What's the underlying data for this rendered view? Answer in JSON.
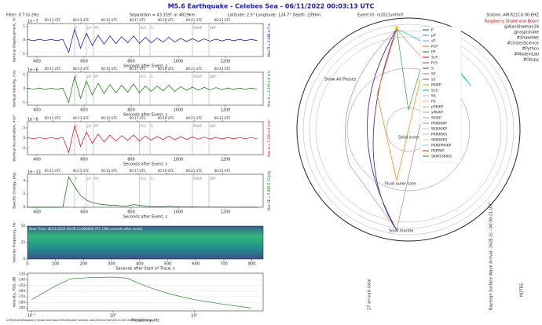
{
  "header": {
    "title": "M5.6 Earthquake - Celebes Sea -  06/11/2022 00:03:13 UTC",
    "filter": "Filter: 0.7 to 2Hz",
    "separation": "Separation = 43.339° or 4819km.",
    "location": "Latitude: 2.5° Longitude: 124.7° Depth: 239km.",
    "event": "Event ID: rs2022vvfmtf",
    "station": "Station: AM.R21C0.00.EHZ",
    "brand": "Raspberry Shake and Boom",
    "tags": [
      "@AlanSheehan18",
      "@raspishake",
      "#ShakeNet",
      "#CitizenScience",
      "#Python",
      "#MadeInLab",
      "#Obspy"
    ],
    "footer": "D:\\Pictures\\Raspberry Shake and Boom\\M5.6Quake Celebes Sea\\2022vvfmtf\\20221106 000313 UTC.EZ.png",
    "notes": "NOTES:",
    "rayleigh": "Rayleigh Surface Wave Arrival: 1628.1s - 00:30:21 UTC",
    "arrivals": "27 arrivals total"
  },
  "diagram": {
    "inner": "Solid inner core",
    "outer": "Fluid outer core",
    "mantle": "Solid mantle",
    "show": "Show All Phases",
    "phases": [
      {
        "name": "P",
        "color": "#1f77b4"
      },
      {
        "name": "pP",
        "color": "#5b9bd5"
      },
      {
        "name": "sP",
        "color": "#7fb8e0"
      },
      {
        "name": "PcP",
        "color": "#ff7f0e"
      },
      {
        "name": "PP",
        "color": "#2ca02c"
      },
      {
        "name": "ScP",
        "color": "#d62728"
      },
      {
        "name": "PcS",
        "color": "#9467bd"
      },
      {
        "name": "S",
        "color": "#8c564b"
      },
      {
        "name": "SP",
        "color": "#e377c2"
      },
      {
        "name": "sS",
        "color": "#7f7f7f"
      },
      {
        "name": "PKiKP",
        "color": "#bcbd22"
      },
      {
        "name": "ScS",
        "color": "#17becf"
      },
      {
        "name": "SS",
        "color": "#aec7e8"
      },
      {
        "name": "PS",
        "color": "#ffbb78"
      },
      {
        "name": "pPKiKP",
        "color": "#98df8a"
      },
      {
        "name": "sPKiKP",
        "color": "#ff9896"
      },
      {
        "name": "SKiKP",
        "color": "#c5b0d5"
      },
      {
        "name": "PKIKKIKP",
        "color": "#c49c94"
      },
      {
        "name": "SKIKKIKP",
        "color": "#f7b6d2"
      },
      {
        "name": "PKIKKIKS",
        "color": "#c7c7c7"
      },
      {
        "name": "SKIKKIKS",
        "color": "#dbdb8d"
      },
      {
        "name": "PKIKPPKIKP",
        "color": "#9edae5"
      },
      {
        "name": "PKPPKP",
        "color": "#e6550d"
      },
      {
        "name": "SKIKSSKIKS",
        "color": "#31a354"
      }
    ]
  },
  "chart_data": [
    {
      "type": "line",
      "ylabel": "Vertical Displacement, m",
      "xlabel": "Seconds after Event, s",
      "exponent": "1e−7",
      "annotation": "Max D = 2.488 e-7 m",
      "color": "#0000cc",
      "xlim": [
        360,
        1360
      ],
      "xticks": [
        400,
        600,
        800,
        1000,
        1200
      ],
      "ylim": [
        -1.2,
        1.2
      ],
      "yticks": [
        -1,
        0,
        1
      ],
      "x2ticks": [
        {
          "value": 467,
          "label": "00:11 UTC"
        },
        {
          "value": 587,
          "label": "00:13 UTC"
        },
        {
          "value": 707,
          "label": "00:15 UTC"
        },
        {
          "value": 827,
          "label": "00:17 UTC"
        },
        {
          "value": 947,
          "label": "00:19 UTC"
        },
        {
          "value": 1067,
          "label": "00:21 UTC"
        },
        {
          "value": 1187,
          "label": "00:23 UTC"
        }
      ],
      "phases": [
        {
          "value": 560,
          "label": "P"
        },
        {
          "value": 610,
          "label": "pP"
        },
        {
          "value": 640,
          "label": "PP"
        },
        {
          "value": 835,
          "label": "PcS"
        },
        {
          "value": 880,
          "label": "S"
        },
        {
          "value": 1060,
          "label": "PKiKP"
        },
        {
          "value": 1130,
          "label": "SKP"
        }
      ],
      "x": [
        360,
        385,
        410,
        435,
        460,
        485,
        510,
        535,
        560,
        585,
        610,
        635,
        660,
        685,
        710,
        735,
        760,
        785,
        810,
        835,
        860,
        885,
        910,
        935,
        960,
        985,
        1010,
        1035,
        1060,
        1085,
        1110,
        1135,
        1160,
        1185,
        1210,
        1235,
        1260,
        1285,
        1310,
        1335
      ],
      "values": [
        0.04,
        -0.05,
        0.05,
        -0.04,
        0.05,
        -0.05,
        0.06,
        -0.9,
        0.8,
        -0.6,
        0.5,
        -0.4,
        0.35,
        -0.3,
        0.3,
        -0.25,
        0.25,
        -0.2,
        0.3,
        -0.25,
        0.2,
        -0.2,
        0.15,
        -0.15,
        0.2,
        -0.15,
        0.12,
        -0.1,
        0.1,
        -0.1,
        0.08,
        -0.08,
        0.07,
        -0.07,
        0.06,
        -0.06,
        0.05,
        -0.05,
        0.05,
        -0.05
      ]
    },
    {
      "type": "line",
      "ylabel": "Vertical Velocity, m/s",
      "xlabel": "Seconds after Event, s",
      "exponent": "1e−6",
      "annotation": "Max V = 1.055 e-6 m/s",
      "color": "#007700",
      "xlim": [
        360,
        1360
      ],
      "xticks": [
        400,
        600,
        800,
        1000,
        1200
      ],
      "ylim": [
        -1.2,
        1.2
      ],
      "yticks": [
        -1,
        0,
        1
      ],
      "x2ticks": [
        {
          "value": 467,
          "label": "00:11 UTC"
        },
        {
          "value": 587,
          "label": "00:13 UTC"
        },
        {
          "value": 707,
          "label": "00:15 UTC"
        },
        {
          "value": 827,
          "label": "00:17 UTC"
        },
        {
          "value": 947,
          "label": "00:19 UTC"
        },
        {
          "value": 1067,
          "label": "00:21 UTC"
        },
        {
          "value": 1187,
          "label": "00:23 UTC"
        }
      ],
      "phases": [
        {
          "value": 560,
          "label": "P"
        },
        {
          "value": 610,
          "label": "pP"
        },
        {
          "value": 640,
          "label": "PP"
        },
        {
          "value": 835,
          "label": "PcS"
        },
        {
          "value": 880,
          "label": "S"
        },
        {
          "value": 1060,
          "label": "PKiKP"
        },
        {
          "value": 1130,
          "label": "SKP"
        }
      ],
      "x": [
        360,
        385,
        410,
        435,
        460,
        485,
        510,
        535,
        560,
        585,
        610,
        635,
        660,
        685,
        710,
        735,
        760,
        785,
        810,
        835,
        860,
        885,
        910,
        935,
        960,
        985,
        1010,
        1035,
        1060,
        1085,
        1110,
        1135,
        1160,
        1185,
        1210,
        1235,
        1260,
        1285,
        1310,
        1335
      ],
      "values": [
        0.05,
        -0.04,
        0.05,
        -0.05,
        0.04,
        -0.05,
        0.05,
        -1,
        0.9,
        -0.7,
        0.55,
        -0.45,
        0.4,
        -0.35,
        0.3,
        -0.3,
        0.25,
        -0.25,
        0.35,
        -0.3,
        0.2,
        -0.2,
        0.2,
        -0.15,
        0.25,
        -0.2,
        0.15,
        -0.12,
        0.12,
        -0.1,
        0.1,
        -0.08,
        0.08,
        -0.07,
        0.06,
        -0.06,
        0.05,
        -0.05,
        0.05,
        -0.04
      ]
    },
    {
      "type": "line",
      "ylabel": "Vertical Acceleration, m/s²",
      "xlabel": "Seconds after Event, s",
      "exponent": "1e−6",
      "annotation": "Max A = 7.226 e-6 m/s²",
      "color": "#dd0000",
      "xlim": [
        360,
        1360
      ],
      "xticks": [
        400,
        600,
        800,
        1000,
        1200
      ],
      "ylim": [
        -8,
        8
      ],
      "yticks": [
        -5,
        0,
        5
      ],
      "x2ticks": [
        {
          "value": 467,
          "label": "00:11 UTC"
        },
        {
          "value": 587,
          "label": "00:13 UTC"
        },
        {
          "value": 707,
          "label": "00:15 UTC"
        },
        {
          "value": 827,
          "label": "00:17 UTC"
        },
        {
          "value": 947,
          "label": "00:19 UTC"
        },
        {
          "value": 1067,
          "label": "00:21 UTC"
        },
        {
          "value": 1187,
          "label": "00:23 UTC"
        }
      ],
      "phases": [
        {
          "value": 560,
          "label": "P"
        },
        {
          "value": 610,
          "label": "pP"
        },
        {
          "value": 640,
          "label": "PP"
        },
        {
          "value": 835,
          "label": "PcS"
        },
        {
          "value": 880,
          "label": "S"
        },
        {
          "value": 1060,
          "label": "PKiKP"
        },
        {
          "value": 1130,
          "label": "SKP"
        }
      ],
      "x": [
        360,
        385,
        410,
        435,
        460,
        485,
        510,
        535,
        560,
        585,
        610,
        635,
        660,
        685,
        710,
        735,
        760,
        785,
        810,
        835,
        860,
        885,
        910,
        935,
        960,
        985,
        1010,
        1035,
        1060,
        1085,
        1110,
        1135,
        1160,
        1185,
        1210,
        1235,
        1260,
        1285,
        1310,
        1335
      ],
      "values": [
        0.3,
        -0.3,
        0.3,
        -0.3,
        0.3,
        -0.3,
        0.4,
        -7,
        6,
        -4,
        3,
        -2.5,
        2,
        -1.8,
        1.5,
        -1.4,
        1.2,
        -1.1,
        1.6,
        -1.3,
        1,
        -0.9,
        0.8,
        -0.7,
        1,
        -0.8,
        0.7,
        -0.6,
        0.6,
        -0.5,
        0.5,
        -0.45,
        0.4,
        -0.4,
        0.35,
        -0.35,
        0.3,
        -0.3,
        0.3,
        -0.3
      ]
    },
    {
      "type": "line",
      "ylabel": "Specific Energy, J/kg",
      "xlabel": "Seconds after Event, s",
      "exponent": "1e−13",
      "annotation": "Max SE = 5.585 E-13 J/kg",
      "color": "#006600",
      "xlim": [
        360,
        1360
      ],
      "xticks": [
        400,
        600,
        800,
        1000,
        1200
      ],
      "ylim": [
        0,
        5
      ],
      "yticks": [
        0,
        2,
        4
      ],
      "x2ticks": [
        {
          "value": 467,
          "label": "00:11 UTC"
        },
        {
          "value": 587,
          "label": "00:13 UTC"
        },
        {
          "value": 707,
          "label": "00:15 UTC"
        },
        {
          "value": 827,
          "label": "00:17 UTC"
        },
        {
          "value": 947,
          "label": "00:19 UTC"
        },
        {
          "value": 1067,
          "label": "00:21 UTC"
        },
        {
          "value": 1187,
          "label": "00:23 UTC"
        }
      ],
      "phases": [
        {
          "value": 560,
          "label": "P"
        },
        {
          "value": 610,
          "label": "pP"
        },
        {
          "value": 640,
          "label": "PP"
        },
        {
          "value": 835,
          "label": "PcS"
        },
        {
          "value": 880,
          "label": "S"
        },
        {
          "value": 1060,
          "label": "PKiKP"
        },
        {
          "value": 1130,
          "label": "SKP"
        }
      ],
      "x": [
        360,
        385,
        410,
        435,
        460,
        485,
        510,
        535,
        560,
        585,
        610,
        635,
        660,
        685,
        710,
        735,
        760,
        785,
        810,
        835,
        860,
        885,
        910,
        935,
        960,
        985,
        1010,
        1035,
        1060,
        1085,
        1110,
        1135,
        1160,
        1185,
        1210,
        1235,
        1260,
        1285,
        1310,
        1335
      ],
      "values": [
        0.01,
        0,
        0.01,
        0,
        0.01,
        0,
        0.02,
        4.6,
        3.1,
        1.8,
        1.1,
        0.7,
        0.5,
        0.4,
        0.3,
        0.3,
        0.2,
        0.2,
        0.4,
        0.3,
        0.15,
        0.1,
        0.1,
        0.08,
        0.15,
        0.1,
        0.06,
        0.05,
        0.05,
        0.04,
        0.03,
        0.03,
        0.02,
        0.02,
        0.02,
        0.01,
        0.01,
        0.01,
        0.01,
        0.01
      ]
    },
    {
      "type": "heatmap",
      "ylabel": "Velocity Frequency, Hz",
      "xlabel": "Seconds after Start of Trace, s",
      "caption": "Start Time: 06/11/2022 00:09:13.000000 UTC (360 seconds after event)",
      "xlim": [
        0,
        840
      ],
      "xticks": [
        0,
        100,
        200,
        300,
        400,
        500,
        600,
        700,
        800
      ],
      "ylim": [
        0,
        50
      ],
      "yticks": [
        0,
        25,
        50
      ]
    },
    {
      "type": "line",
      "xscale": "log",
      "ylabel": "Velocity, PSD, dB",
      "xlabel": "Frequency, Hz",
      "color": "#228b22",
      "xlim": [
        0.089,
        70
      ],
      "xticks": [
        {
          "value": 0.1,
          "label": "10⁻¹"
        },
        {
          "value": 1,
          "label": "10⁰"
        },
        {
          "value": 10,
          "label": "10¹"
        }
      ],
      "ylim": [
        -195,
        -128
      ],
      "yticks": [
        -190,
        -180,
        -170,
        -160,
        -150,
        -140,
        -130
      ],
      "x": [
        0.1,
        0.2,
        0.3,
        0.5,
        1,
        1.5,
        2,
        3,
        5,
        10,
        20,
        50
      ],
      "values": [
        -175,
        -150,
        -138,
        -136,
        -135,
        -137,
        -145,
        -155,
        -165,
        -175,
        -182,
        -190
      ]
    }
  ]
}
